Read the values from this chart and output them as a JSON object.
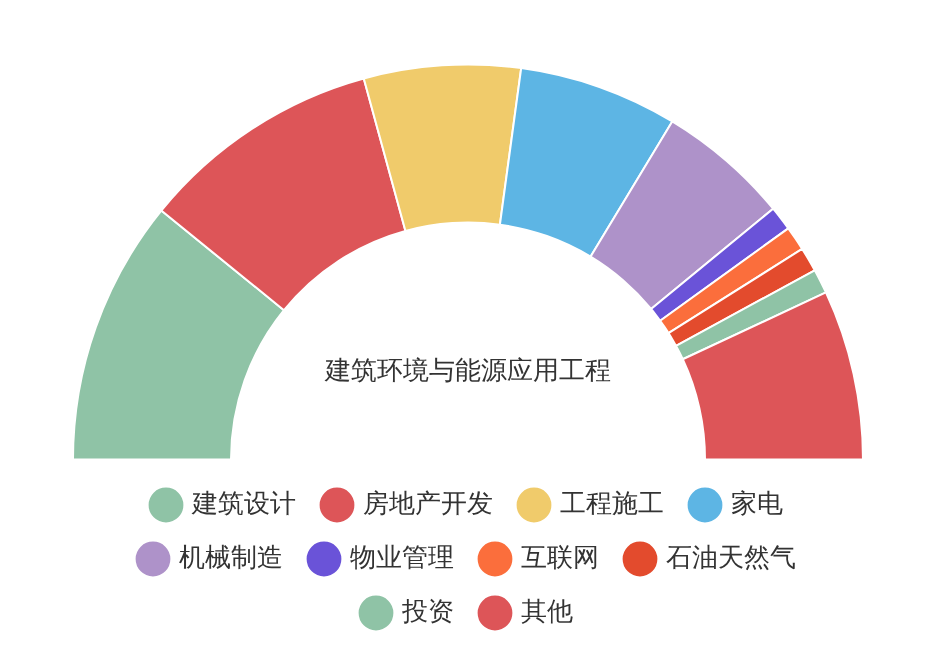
{
  "chart_data": {
    "type": "donut",
    "title": "建筑环境与能源应用工程",
    "categories": [
      "建筑设计",
      "房地产开发",
      "工程施工",
      "家电",
      "机械制造",
      "物业管理",
      "互联网",
      "石油天然气",
      "投资",
      "其他"
    ],
    "values": [
      21.7,
      19.8,
      12.8,
      13,
      10.8,
      2,
      2,
      2,
      2,
      13.9
    ],
    "colors": [
      "#8fc3a6",
      "#dd5558",
      "#f0cb6b",
      "#5db5e4",
      "#ae92c9",
      "#6a53d8",
      "#fb6e3c",
      "#e34b2d",
      "#8fc3a6",
      "#dd5558"
    ],
    "legend": "bottom"
  }
}
